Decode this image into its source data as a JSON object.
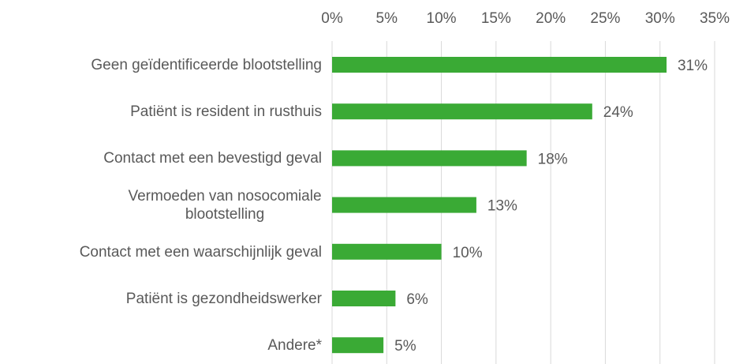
{
  "chart_data": {
    "type": "bar",
    "orientation": "horizontal",
    "categories": [
      "Geen geïdentificeerde blootstelling",
      "Patiënt is resident in rusthuis",
      "Contact met een bevestigd geval",
      "Vermoeden van nosocomiale blootstelling",
      "Contact met een waarschijnlijk geval",
      "Patiënt is gezondheidswerker",
      "Andere*"
    ],
    "values": [
      30.6,
      23.8,
      17.8,
      13.2,
      10.0,
      5.8,
      4.7
    ],
    "value_labels": [
      "31%",
      "24%",
      "18%",
      "13%",
      "10%",
      "6%",
      "5%"
    ],
    "color": "#3aaa35",
    "xlim": [
      0,
      35
    ],
    "xticks": [
      {
        "value": 0,
        "label": "0%"
      },
      {
        "value": 5,
        "label": "5%"
      },
      {
        "value": 10,
        "label": "10%"
      },
      {
        "value": 15,
        "label": "15%"
      },
      {
        "value": 20,
        "label": "20%"
      },
      {
        "value": 25,
        "label": "25%"
      },
      {
        "value": 30,
        "label": "30%"
      },
      {
        "value": 35,
        "label": "35%"
      }
    ],
    "grid": true
  }
}
